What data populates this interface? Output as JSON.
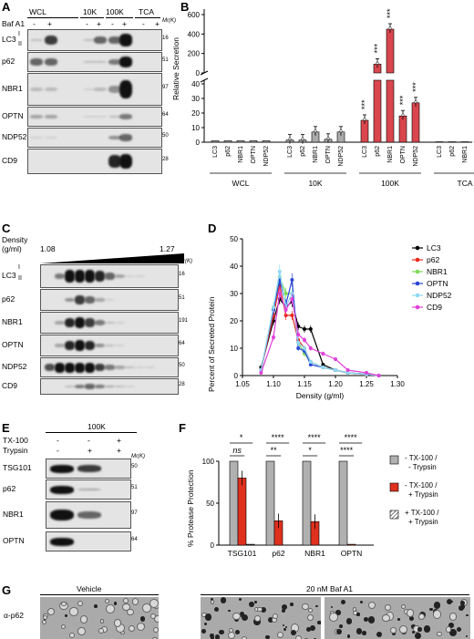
{
  "panels": {
    "A": "A",
    "B": "B",
    "C": "C",
    "D": "D",
    "E": "E",
    "F": "F",
    "G": "G"
  },
  "panelA": {
    "groups": [
      "WCL",
      "10K",
      "100K",
      "TCA"
    ],
    "baf_label": "Baf A1",
    "signs": [
      "-",
      "+",
      "-",
      "+",
      "-",
      "+",
      "-",
      "+"
    ],
    "rows": [
      "LC3",
      "p62",
      "NBR1",
      "OPTN",
      "NDP52",
      "CD9"
    ],
    "lc3_forms": [
      "I",
      "II"
    ],
    "mr_label": "Mr(K)",
    "mw": [
      "16",
      "51",
      "97",
      "64",
      "50",
      "28"
    ]
  },
  "panelB": {
    "ylabel": "Relative Secretion",
    "yticks_top": [
      "0",
      "200",
      "400",
      "600"
    ],
    "yticks_bottom": [
      "0",
      "10",
      "20",
      "30",
      "40"
    ],
    "groups": [
      "WCL",
      "10K",
      "100K",
      "TCA"
    ],
    "proteins": [
      "LC3",
      "p62",
      "NBR1",
      "OPTN",
      "NDP52"
    ],
    "stars": [
      "***",
      "***",
      "***",
      "***",
      "***"
    ]
  },
  "panelC": {
    "density_label": "Density",
    "density_unit": "(g/ml)",
    "density_min": "1.08",
    "density_max": "1.27",
    "mr_label": "Mr(K)",
    "rows": [
      "LC3",
      "p62",
      "NBR1",
      "OPTN",
      "NDP52",
      "CD9"
    ],
    "lc3_forms": [
      "I",
      "II"
    ],
    "mw": [
      "16",
      "51",
      "191",
      "64",
      "50",
      "28"
    ]
  },
  "panelD": {
    "ylabel": "Percent of Secreted Protein",
    "xlabel": "Density (g/ml)",
    "xticks": [
      "1.05",
      "1.10",
      "1.15",
      "1.20",
      "1.25",
      "1.30"
    ],
    "yticks": [
      "0",
      "10",
      "20",
      "30",
      "40",
      "50"
    ],
    "legend": [
      {
        "name": "LC3",
        "color": "#000000"
      },
      {
        "name": "p62",
        "color": "#e8291c"
      },
      {
        "name": "NBR1",
        "color": "#7ed957"
      },
      {
        "name": "OPTN",
        "color": "#2b46d6"
      },
      {
        "name": "NDP52",
        "color": "#8fd8f2"
      },
      {
        "name": "CD9",
        "color": "#e040d8"
      }
    ]
  },
  "panelE": {
    "header": "100K",
    "tx_label": "TX-100",
    "trypsin_label": "Trypsin",
    "tx_signs": [
      "-",
      "-",
      "+"
    ],
    "trypsin_signs": [
      "-",
      "+",
      "+"
    ],
    "mr_label": "Mr(K)",
    "rows": [
      "TSG101",
      "p62",
      "NBR1",
      "OPTN"
    ],
    "mw": [
      "50",
      "51",
      "97",
      "64"
    ]
  },
  "panelF": {
    "ylabel": "% Protease Protection",
    "yticks": [
      "0",
      "50",
      "100"
    ],
    "categories": [
      "TSG101",
      "p62",
      "NBR1",
      "OPTN"
    ],
    "sig_top": [
      "*",
      "****",
      "****",
      "****"
    ],
    "sig_bottom": [
      "ns",
      "**",
      "*",
      "****"
    ],
    "legend": [
      "- TX-100 / - Trypsin",
      "- TX-100 / + Trypsin",
      "+ TX-100 / + Trypsin"
    ],
    "legend_colors": [
      "#b0b0b0",
      "#e0301e",
      "#ffffff"
    ]
  },
  "panelG": {
    "vehicle": "Vehicle",
    "baf": "20 nM Baf A1",
    "antibody": "α-p62"
  },
  "chart_data": [
    {
      "type": "bar",
      "ylabel": "Relative Secretion",
      "categories": [
        "WCL-LC3",
        "WCL-p62",
        "WCL-NBR1",
        "WCL-OPTN",
        "WCL-NDP52",
        "10K-LC3",
        "10K-p62",
        "10K-NBR1",
        "10K-OPTN",
        "10K-NDP52",
        "100K-LC3",
        "100K-p62",
        "100K-NBR1",
        "100K-OPTN",
        "100K-NDP52",
        "TCA-LC3",
        "TCA-p62",
        "TCA-NBR1",
        "TCA-OPTN",
        "TCA-NDP52"
      ],
      "values": [
        1,
        1,
        1,
        1,
        1,
        1.5,
        1.5,
        7,
        2,
        7,
        15,
        90,
        450,
        18,
        27,
        0.3,
        0.3,
        0.3,
        0.3,
        0.3
      ]
    },
    {
      "type": "line",
      "xlabel": "Density (g/ml)",
      "ylabel": "Percent of Secreted Protein",
      "xlim": [
        1.05,
        1.3
      ],
      "ylim": [
        0,
        50
      ],
      "x": [
        1.08,
        1.1,
        1.11,
        1.12,
        1.13,
        1.14,
        1.15,
        1.16,
        1.18,
        1.2,
        1.22,
        1.25,
        1.27
      ],
      "series": [
        {
          "name": "LC3",
          "values": [
            3,
            20,
            28,
            25,
            27,
            18,
            17,
            17,
            4,
            2,
            1,
            0.5,
            0
          ]
        },
        {
          "name": "p62",
          "values": [
            2,
            22,
            33,
            22,
            22,
            13,
            10,
            5,
            3,
            2,
            1,
            0.5,
            0
          ]
        },
        {
          "name": "NBR1",
          "values": [
            2,
            25,
            36,
            30,
            30,
            12,
            8,
            5,
            3,
            2,
            1,
            0.5,
            0
          ]
        },
        {
          "name": "OPTN",
          "values": [
            2,
            24,
            35,
            26,
            35,
            10,
            9,
            4,
            3,
            2,
            1,
            0.5,
            0
          ]
        },
        {
          "name": "NDP52",
          "values": [
            2,
            25,
            38,
            25,
            30,
            12,
            10,
            5,
            3,
            2,
            1,
            0.5,
            0
          ]
        },
        {
          "name": "CD9",
          "values": [
            1,
            14,
            30,
            24,
            28,
            15,
            13,
            10,
            8,
            6,
            2,
            1,
            0
          ]
        }
      ]
    },
    {
      "type": "bar",
      "ylabel": "% Protease Protection",
      "categories": [
        "TSG101",
        "p62",
        "NBR1",
        "OPTN"
      ],
      "ylim": [
        0,
        100
      ],
      "series": [
        {
          "name": "- TX-100 / - Trypsin",
          "values": [
            100,
            100,
            100,
            100
          ]
        },
        {
          "name": "- TX-100 / + Trypsin",
          "values": [
            80,
            29,
            28,
            1
          ]
        },
        {
          "name": "+ TX-100 / + Trypsin",
          "values": [
            1,
            0,
            0,
            0
          ]
        }
      ]
    }
  ]
}
